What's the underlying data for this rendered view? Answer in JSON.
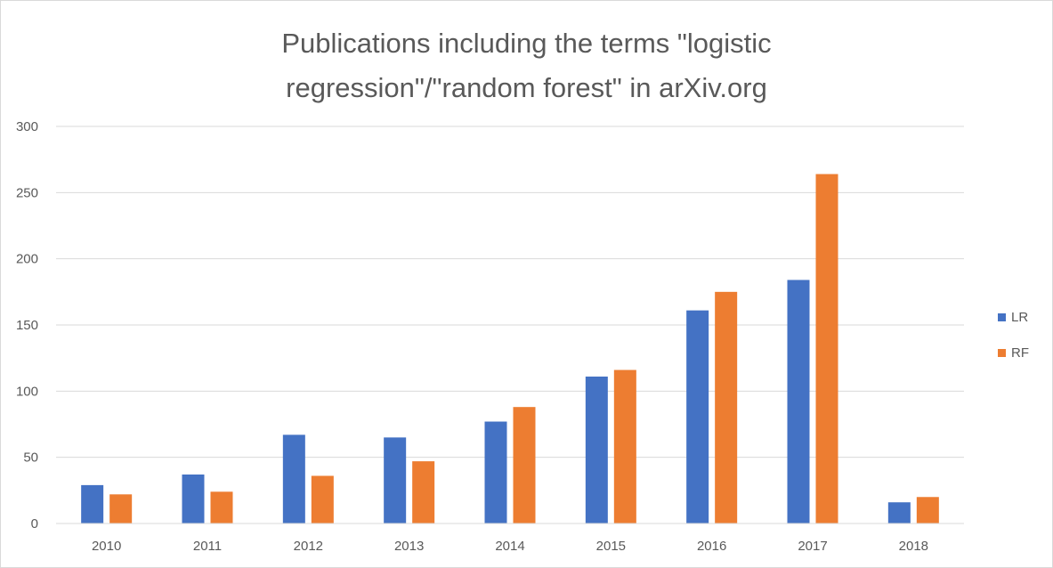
{
  "chart_data": {
    "type": "bar",
    "title": "Publications including the terms \"logistic regression\"/\"random forest\" in arXiv.org",
    "title_lines": [
      "Publications including the terms \"logistic",
      "regression\"/\"random forest\" in arXiv.org"
    ],
    "categories": [
      "2010",
      "2011",
      "2012",
      "2013",
      "2014",
      "2015",
      "2016",
      "2017",
      "2018"
    ],
    "series": [
      {
        "name": "LR",
        "color": "#4472c4",
        "values": [
          29,
          37,
          67,
          65,
          77,
          111,
          161,
          184,
          16
        ]
      },
      {
        "name": "RF",
        "color": "#ed7d31",
        "values": [
          22,
          24,
          36,
          47,
          88,
          116,
          175,
          264,
          20
        ]
      }
    ],
    "ylim": [
      0,
      300
    ],
    "yticks": [
      "0",
      "50",
      "100",
      "150",
      "200",
      "250",
      "300"
    ],
    "xlabel": "",
    "ylabel": "",
    "grid": true,
    "legend_position": "right"
  }
}
